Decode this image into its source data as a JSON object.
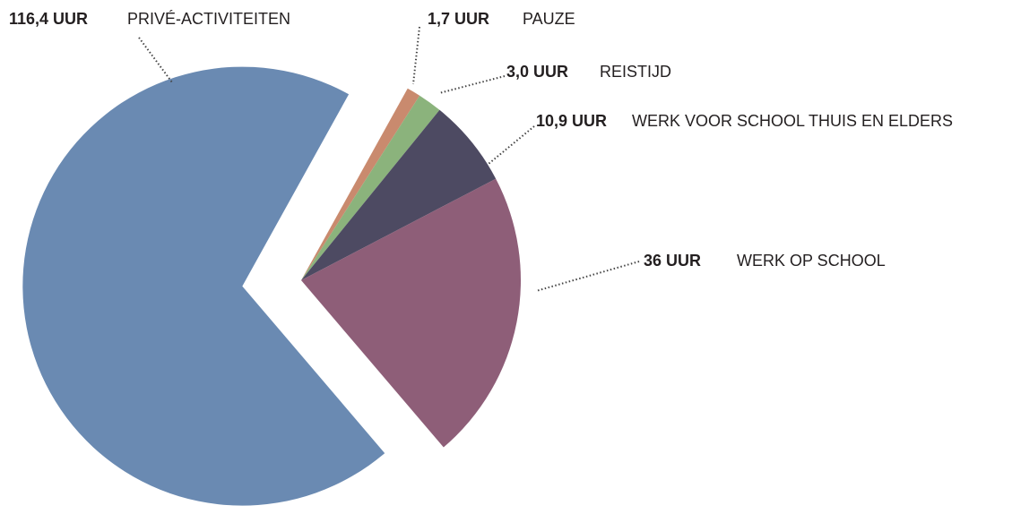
{
  "chart_data": {
    "type": "pie",
    "categories": [
      "PAUZE",
      "REISTIJD",
      "WERK VOOR SCHOOL THUIS EN ELDERS",
      "WERK OP SCHOOL",
      "PRIVÉ-ACTIVITEITEN"
    ],
    "values": [
      1.7,
      3.0,
      10.9,
      36,
      116.4
    ],
    "value_labels": [
      "1,7 UUR",
      "3,0 UUR",
      "10,9 UUR",
      "36 UUR",
      "116,4 UUR"
    ],
    "colors": [
      "#c98a6e",
      "#8bb37c",
      "#4d4a62",
      "#8e5e78",
      "#6a8ab2"
    ]
  }
}
